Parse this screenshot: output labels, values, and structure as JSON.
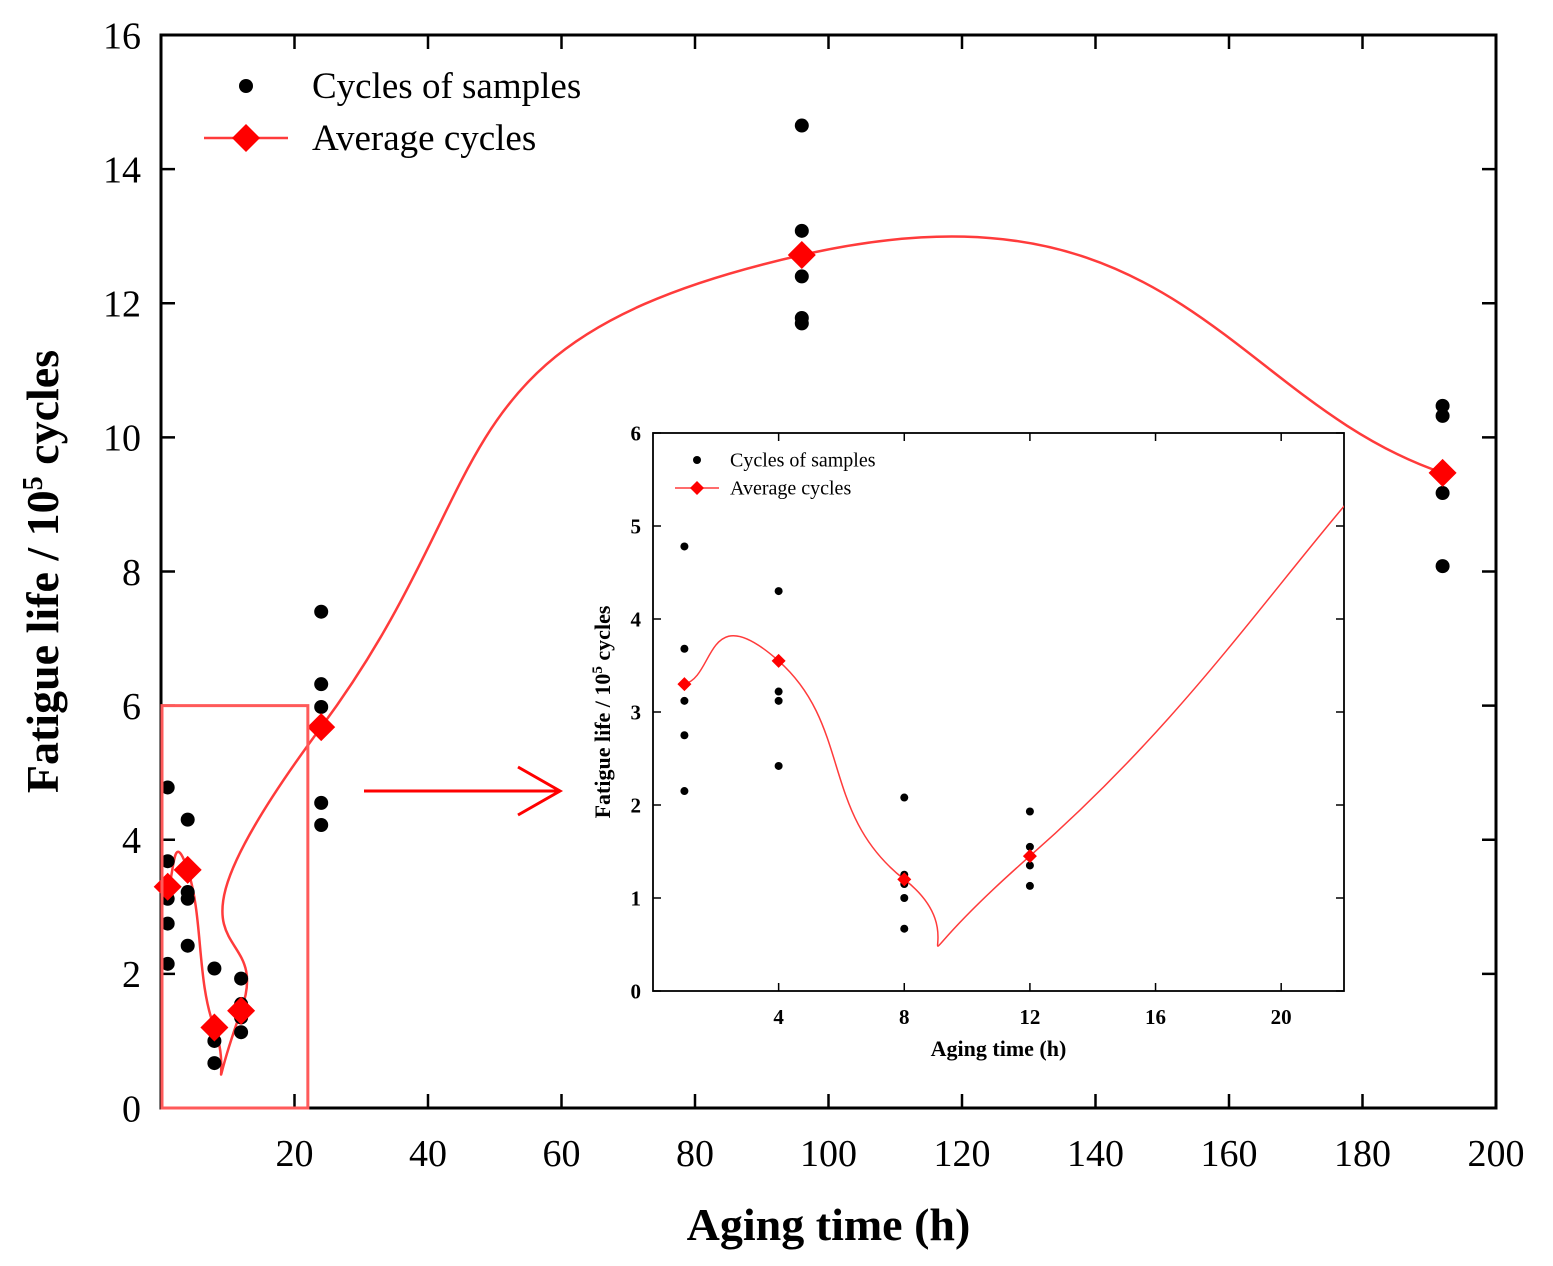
{
  "chart_data": [
    {
      "id": "main",
      "type": "scatter",
      "xlabel": "Aging time (h)",
      "ylabel_prefix": "Fatigue life / 10",
      "ylabel_exponent": "5",
      "ylabel_suffix": " cycles",
      "xlim": [
        0,
        200
      ],
      "ylim": [
        0,
        16
      ],
      "xticks": [
        20,
        40,
        60,
        80,
        100,
        120,
        140,
        160,
        180,
        200
      ],
      "yticks": [
        0,
        2,
        4,
        6,
        8,
        10,
        12,
        14,
        16
      ],
      "legend": {
        "position": "top-left",
        "entries": [
          "Cycles of samples",
          "Average cycles"
        ]
      },
      "series": [
        {
          "name": "Cycles of samples",
          "marker": "circle",
          "color": "#000000",
          "points": [
            [
              1,
              4.78
            ],
            [
              1,
              3.68
            ],
            [
              1,
              3.12
            ],
            [
              1,
              2.75
            ],
            [
              1,
              2.15
            ],
            [
              4,
              4.3
            ],
            [
              4,
              3.22
            ],
            [
              4,
              3.12
            ],
            [
              4,
              2.42
            ],
            [
              8,
              2.08
            ],
            [
              8,
              1.0
            ],
            [
              8,
              0.67
            ],
            [
              12,
              1.93
            ],
            [
              12,
              1.55
            ],
            [
              12,
              1.35
            ],
            [
              12,
              1.13
            ],
            [
              24,
              7.4
            ],
            [
              24,
              6.32
            ],
            [
              24,
              5.98
            ],
            [
              24,
              4.55
            ],
            [
              24,
              4.22
            ],
            [
              96,
              14.65
            ],
            [
              96,
              13.08
            ],
            [
              96,
              12.4
            ],
            [
              96,
              11.78
            ],
            [
              96,
              11.7
            ],
            [
              192,
              10.47
            ],
            [
              192,
              10.32
            ],
            [
              192,
              9.17
            ],
            [
              192,
              8.08
            ]
          ]
        },
        {
          "name": "Average cycles",
          "marker": "diamond",
          "color": "#ff0000",
          "points": [
            [
              1,
              3.3
            ],
            [
              4,
              3.55
            ],
            [
              8,
              1.2
            ],
            [
              12,
              1.45
            ],
            [
              24,
              5.68
            ],
            [
              96,
              12.72
            ],
            [
              192,
              9.47
            ]
          ]
        }
      ]
    },
    {
      "id": "inset",
      "type": "scatter",
      "xlabel": "Aging time (h)",
      "ylabel_prefix": "Fatigue life / 10",
      "ylabel_exponent": "5",
      "ylabel_suffix": " cycles",
      "xlim": [
        0,
        22
      ],
      "ylim": [
        0,
        6
      ],
      "xticks": [
        4,
        8,
        12,
        16,
        20
      ],
      "yticks": [
        0,
        1,
        2,
        3,
        4,
        5,
        6
      ],
      "legend": {
        "position": "top-left",
        "entries": [
          "Cycles of samples",
          "Average cycles"
        ]
      },
      "series": [
        {
          "name": "Cycles of samples",
          "marker": "circle",
          "color": "#000000",
          "points": [
            [
              1,
              4.78
            ],
            [
              1,
              3.68
            ],
            [
              1,
              3.12
            ],
            [
              1,
              2.75
            ],
            [
              1,
              2.15
            ],
            [
              4,
              4.3
            ],
            [
              4,
              3.22
            ],
            [
              4,
              3.12
            ],
            [
              4,
              2.42
            ],
            [
              8,
              2.08
            ],
            [
              8,
              1.25
            ],
            [
              8,
              1.15
            ],
            [
              8,
              1.0
            ],
            [
              8,
              0.67
            ],
            [
              12,
              1.93
            ],
            [
              12,
              1.55
            ],
            [
              12,
              1.35
            ],
            [
              12,
              1.13
            ]
          ]
        },
        {
          "name": "Average cycles",
          "marker": "diamond",
          "color": "#ff0000",
          "points": [
            [
              1,
              3.3
            ],
            [
              4,
              3.55
            ],
            [
              8,
              1.2
            ],
            [
              12,
              1.45
            ]
          ]
        }
      ]
    }
  ]
}
